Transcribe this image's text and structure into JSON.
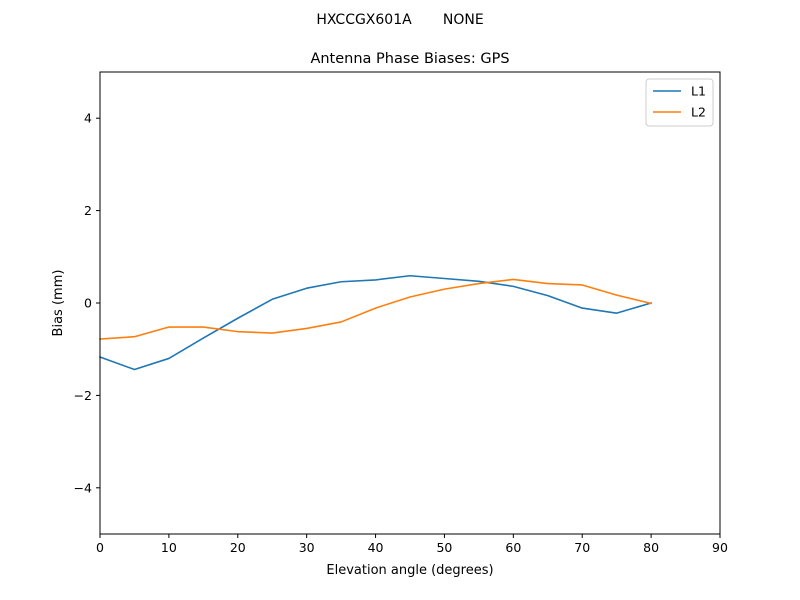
{
  "suptitle": "HXCCGX601A       NONE",
  "chart_data": {
    "type": "line",
    "title": "Antenna Phase Biases: GPS",
    "xlabel": "Elevation angle (degrees)",
    "ylabel": "Bias (mm)",
    "xlim": [
      0,
      90
    ],
    "ylim": [
      -5,
      5
    ],
    "xticks": [
      0,
      10,
      20,
      30,
      40,
      50,
      60,
      70,
      80,
      90
    ],
    "yticks": [
      -4,
      -2,
      0,
      2,
      4
    ],
    "ytick_labels": [
      "−4",
      "−2",
      "0",
      "2",
      "4"
    ],
    "grid": false,
    "legend_position": "top-right",
    "x": [
      0,
      5,
      10,
      15,
      20,
      25,
      30,
      35,
      40,
      45,
      50,
      55,
      60,
      65,
      70,
      75,
      80
    ],
    "series": [
      {
        "name": "L1",
        "color": "#1f77b4",
        "values": [
          -1.17,
          -1.44,
          -1.2,
          -0.76,
          -0.33,
          0.08,
          0.32,
          0.46,
          0.5,
          0.59,
          0.53,
          0.47,
          0.36,
          0.16,
          -0.11,
          -0.22,
          0.0
        ]
      },
      {
        "name": "L2",
        "color": "#ff7f0e",
        "values": [
          -0.78,
          -0.73,
          -0.52,
          -0.52,
          -0.62,
          -0.65,
          -0.55,
          -0.41,
          -0.11,
          0.13,
          0.3,
          0.42,
          0.51,
          0.42,
          0.39,
          0.17,
          -0.01
        ]
      }
    ]
  }
}
